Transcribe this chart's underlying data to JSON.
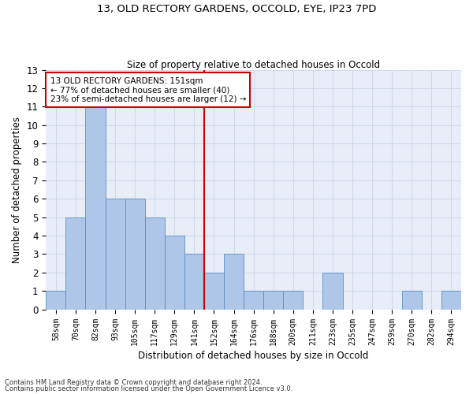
{
  "title1": "13, OLD RECTORY GARDENS, OCCOLD, EYE, IP23 7PD",
  "title2": "Size of property relative to detached houses in Occold",
  "xlabel": "Distribution of detached houses by size in Occold",
  "ylabel": "Number of detached properties",
  "footnote1": "Contains HM Land Registry data © Crown copyright and database right 2024.",
  "footnote2": "Contains public sector information licensed under the Open Government Licence v3.0.",
  "annotation_line1": "13 OLD RECTORY GARDENS: 151sqm",
  "annotation_line2": "← 77% of detached houses are smaller (40)",
  "annotation_line3": "23% of semi-detached houses are larger (12) →",
  "bar_labels": [
    "58sqm",
    "70sqm",
    "82sqm",
    "93sqm",
    "105sqm",
    "117sqm",
    "129sqm",
    "141sqm",
    "152sqm",
    "164sqm",
    "176sqm",
    "188sqm",
    "200sqm",
    "211sqm",
    "223sqm",
    "235sqm",
    "247sqm",
    "259sqm",
    "270sqm",
    "282sqm",
    "294sqm"
  ],
  "bar_values": [
    1,
    5,
    11,
    6,
    6,
    5,
    4,
    3,
    2,
    3,
    1,
    1,
    1,
    0,
    2,
    0,
    0,
    0,
    1,
    0,
    1
  ],
  "bar_color": "#aec6e8",
  "bar_edge_color": "#5a8fc2",
  "grid_color": "#d0d8e8",
  "reference_line_color": "#cc0000",
  "annotation_box_edge_color": "#cc0000",
  "ylim": [
    0,
    13
  ],
  "background_color": "#e8edf8",
  "fig_background": "#ffffff",
  "ref_bar_index": 8
}
